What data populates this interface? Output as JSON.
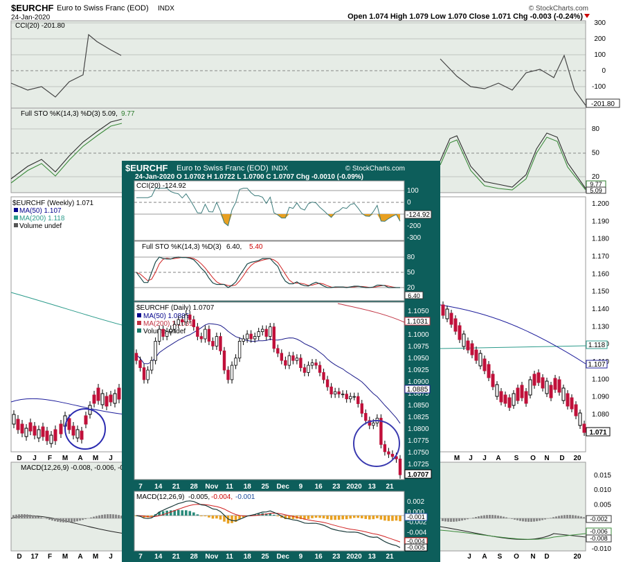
{
  "header": {
    "symbol": "$EURCHF",
    "name": "Euro to Swiss Franc (EOD)",
    "exchange": "INDX",
    "date": "24-Jan-2020",
    "watermark": "© StockCharts.com",
    "ohlc": "Open 1.074  High 1.079  Low 1.070  Close 1.071  Chg -0.003 (-0.24%)"
  },
  "weekly": {
    "cci_label": "CCI(20) -201.80",
    "cci_value": "-201.80",
    "cci_ticks": [
      "300",
      "200",
      "100",
      "0",
      "-100"
    ],
    "sto_label_a": "Full STO %K(14,3) %D(3) 5.09,",
    "sto_label_b": "9.77",
    "sto_ticks": [
      "80",
      "50",
      "20"
    ],
    "sto_values": [
      "9.77",
      "5.09"
    ],
    "legend": {
      "main": "$EURCHF (Weekly) 1.071",
      "ma50": "MA(50) 1.107",
      "ma200": "MA(200) 1.118",
      "vol": "Volume undef"
    },
    "price_ticks": [
      "1.200",
      "1.190",
      "1.180",
      "1.170",
      "1.160",
      "1.150",
      "1.140",
      "1.130",
      "1.120",
      "1.110",
      "1.100",
      "1.090",
      "1.080"
    ],
    "price_boxes": [
      "1.118",
      "1.107",
      "1.071"
    ],
    "x_labels_upper": [
      "D",
      "J",
      "F",
      "M",
      "A",
      "M",
      "J",
      "M",
      "J",
      "J",
      "A",
      "S",
      "O",
      "N",
      "D",
      "20"
    ],
    "x_labels_lower": [
      "D",
      "17",
      "F",
      "M",
      "A",
      "M",
      "J",
      "J",
      "A",
      "S",
      "O",
      "N",
      "D",
      "20"
    ],
    "macd_label": "MACD(12,26,9) -0.008, -0.006, -0",
    "macd_ticks": [
      "0.015",
      "0.010",
      "0.005",
      "0.000",
      "-0.005",
      "-0.010"
    ],
    "macd_boxes": [
      "-0.002",
      "-0.006",
      "-0.008"
    ]
  },
  "daily": {
    "symbol": "$EURCHF",
    "name": "Euro to Swiss Franc (EOD)",
    "exchange": "INDX",
    "watermark": "© StockCharts.com",
    "ohlc": "24-Jan-2020   O 1.0702  H 1.0722  L 1.0700  C 1.0707  Chg -0.0010 (-0.09%)",
    "cci_label": "CCI(20) -124.92",
    "cci_ticks": [
      "100",
      "0",
      "-100",
      "-200",
      "-300"
    ],
    "cci_value": "-124.92",
    "sto_label_a": "Full STO %K(14,3) %D(3)",
    "sto_label_b": "6.40,",
    "sto_label_c": "5.40",
    "sto_ticks": [
      "80",
      "50",
      "20"
    ],
    "sto_value": "6.40",
    "legend": {
      "main": "$EURCHF (Daily) 1.0707",
      "ma50": "MA(50) 1.0885",
      "ma200": "MA(200) 1.1031",
      "vol": "Volume undef"
    },
    "price_ticks": [
      "1.1050",
      "1.1025",
      "1.1000",
      "1.0975",
      "1.0950",
      "1.0925",
      "1.0900",
      "1.0875",
      "1.0850",
      "1.0825",
      "1.0800",
      "1.0775",
      "1.0750",
      "1.0725"
    ],
    "price_boxes": [
      "1.1031",
      "1.0885",
      "1.0707"
    ],
    "x_labels": [
      "7",
      "14",
      "21",
      "28",
      "Nov",
      "11",
      "18",
      "25",
      "Dec",
      "9",
      "16",
      "23",
      "2020",
      "13",
      "21"
    ],
    "macd_label_a": "MACD(12,26,9)",
    "macd_label_b": "-0.005,",
    "macd_label_c": "-0.004,",
    "macd_label_d": "-0.001",
    "macd_ticks": [
      "0.002",
      "0.000",
      "-0.002",
      "-0.004",
      "-0.006"
    ],
    "macd_boxes": [
      "-0.001",
      "-0.004",
      "-0.005"
    ]
  },
  "chart_data": [
    {
      "type": "candlestick",
      "title": "$EURCHF Euro to Swiss Franc (EOD) INDX — Weekly",
      "ylim": [
        1.065,
        1.205
      ],
      "indicators": [
        "CCI(20)",
        "Full STO %K(14,3) %D(3)",
        "MA(50)",
        "MA(200)",
        "MACD(12,26,9)"
      ],
      "last": {
        "open": 1.074,
        "high": 1.079,
        "low": 1.07,
        "close": 1.071,
        "chg": -0.003,
        "chg_pct": -0.24
      },
      "ma50_last": 1.107,
      "ma200_last": 1.118,
      "cci_last": -201.8,
      "sto_k_last": 5.09,
      "sto_d_last": 9.77,
      "macd_last": {
        "macd": -0.008,
        "signal": -0.006
      }
    },
    {
      "type": "candlestick",
      "title": "$EURCHF Euro to Swiss Franc (EOD) INDX — Daily",
      "ylim": [
        1.07,
        1.1065
      ],
      "indicators": [
        "CCI(20)",
        "Full STO %K(14,3) %D(3)",
        "MA(50)",
        "MA(200)",
        "MACD(12,26,9)"
      ],
      "last": {
        "open": 1.0702,
        "high": 1.0722,
        "low": 1.07,
        "close": 1.0707,
        "chg": -0.001,
        "chg_pct": -0.09
      },
      "closes": [
        1.0945,
        1.093,
        1.0905,
        1.0925,
        1.0945,
        1.0985,
        1.101,
        1.0995,
        1.1005,
        1.101,
        1.102,
        1.103,
        1.1025,
        1.104,
        1.103,
        1.1015,
        1.0995,
        1.099,
        1.101,
        1.0985,
        1.0975,
        1.0995,
        1.0965,
        1.0925,
        1.0905,
        1.0935,
        1.095,
        1.0985,
        1.099,
        1.1,
        1.099,
        1.0995,
        1.1005,
        1.101,
        1.0995,
        1.1015,
        1.097,
        1.096,
        1.0945,
        1.0935,
        1.0955,
        1.0945,
        1.095,
        1.093,
        1.092,
        1.0935,
        1.094,
        1.0935,
        1.092,
        1.0905,
        1.089,
        1.0875,
        1.088,
        1.0875,
        1.0875,
        1.0865,
        1.087,
        1.087,
        1.0855,
        1.0835,
        1.082,
        1.081,
        1.0815,
        1.0825,
        1.077,
        1.0755,
        1.075,
        1.0745,
        1.074,
        1.0707
      ],
      "ma50_last": 1.0885,
      "ma200_last": 1.1031,
      "cci_last": -124.92,
      "sto_k_last": 6.4,
      "sto_d_last": 5.4,
      "macd_last": {
        "macd": -0.005,
        "signal": -0.004,
        "histogram": -0.001
      }
    }
  ]
}
